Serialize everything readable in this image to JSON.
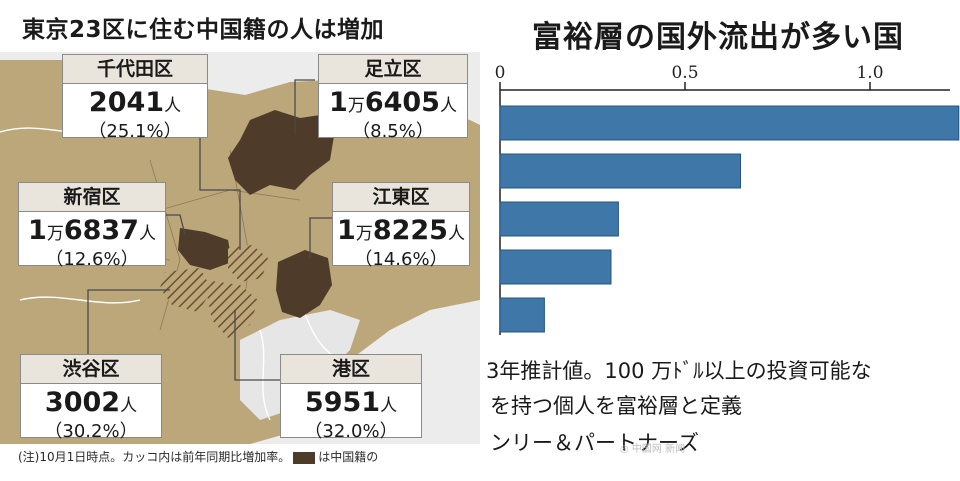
{
  "left_panel": {
    "title": "東京23区に住む中国籍の人は増加",
    "wards": [
      {
        "id": "chiyoda",
        "name": "千代田区",
        "man": "",
        "count": "2041",
        "unit": "人",
        "rate": "（25.1%）"
      },
      {
        "id": "adachi",
        "name": "足立区",
        "man_prefix": "1",
        "man": "万",
        "count": "6405",
        "unit": "人",
        "rate": "（8.5%）"
      },
      {
        "id": "shinjuku",
        "name": "新宿区",
        "man_prefix": "1",
        "man": "万",
        "count": "6837",
        "unit": "人",
        "rate": "（12.6%）"
      },
      {
        "id": "koto",
        "name": "江東区",
        "man_prefix": "1",
        "man": "万",
        "count": "8225",
        "unit": "人",
        "rate": "（14.6%）"
      },
      {
        "id": "shibuya",
        "name": "渋谷区",
        "man": "",
        "count": "3002",
        "unit": "人",
        "rate": "（30.2%）"
      },
      {
        "id": "minato",
        "name": "港区",
        "man": "",
        "count": "5951",
        "unit": "人",
        "rate": "（32.0%）"
      }
    ],
    "note_prefix": "(注)10月1日時点。カッコ内は前年同期比増加率。",
    "note_suffix": "は中国籍の",
    "colors": {
      "land": "#bca77a",
      "dark_ward": "#4e3b2a",
      "hatch": "#7a5a3a",
      "water": "#e6e6e6",
      "line": "#555555"
    }
  },
  "chart": {
    "title": "富裕層の国外流出が多い国",
    "caption_lines": [
      "3年推計値。100 万ﾄﾞﾙ以上の投資可能な",
      "を持つ個人を富裕層と定義",
      "ンリー＆パートナーズ"
    ],
    "watermark": "◎ 中国网 新闻",
    "chart_data": {
      "type": "bar",
      "orientation": "horizontal",
      "title": "富裕層の国外流出が多い国",
      "x_ticks": [
        "0",
        "0.5",
        "1.0"
      ],
      "x_tick_values": [
        0,
        0.5,
        1.0
      ],
      "xlim": [
        0,
        1.2
      ],
      "values": [
        1.24,
        0.65,
        0.32,
        0.3,
        0.12
      ],
      "bar_color": "#3f77a8",
      "grid": false
    }
  }
}
